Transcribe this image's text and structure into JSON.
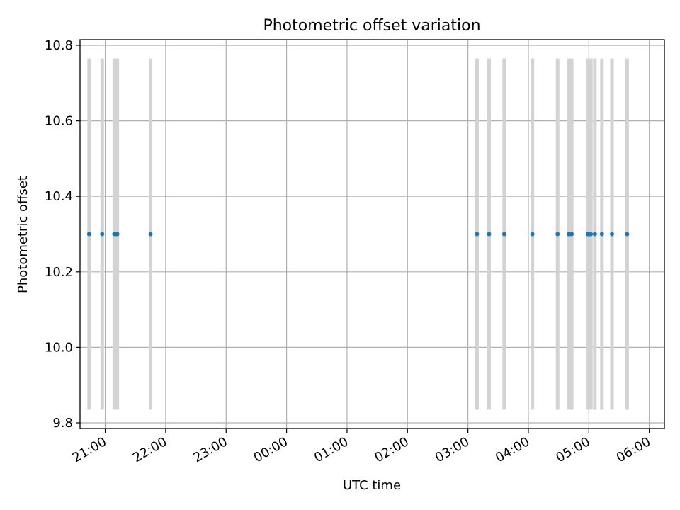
{
  "chart_data": {
    "type": "scatter",
    "title": "Photometric offset variation",
    "xlabel": "UTC time",
    "ylabel": "Photometric offset",
    "x_ticks": [
      "21:00",
      "22:00",
      "23:00",
      "00:00",
      "01:00",
      "02:00",
      "03:00",
      "04:00",
      "05:00",
      "06:00"
    ],
    "y_ticks": [
      "9.8",
      "10.0",
      "10.2",
      "10.4",
      "10.6",
      "10.8"
    ],
    "xlim": [
      "20:35",
      "06:15"
    ],
    "ylim": [
      9.785,
      10.815
    ],
    "grid": true,
    "points": {
      "color": "#1f77b4",
      "x": [
        "20:44",
        "20:57",
        "21:09",
        "21:11",
        "21:12",
        "21:45",
        "03:09",
        "03:21",
        "03:36",
        "04:04",
        "04:29",
        "04:40",
        "04:41",
        "04:43",
        "04:59",
        "05:00",
        "05:01",
        "05:02",
        "05:06",
        "05:13",
        "05:23",
        "05:38"
      ],
      "y": [
        10.3,
        10.3,
        10.3,
        10.3,
        10.3,
        10.3,
        10.3,
        10.3,
        10.3,
        10.3,
        10.3,
        10.3,
        10.3,
        10.3,
        10.3,
        10.3,
        10.3,
        10.3,
        10.3,
        10.3,
        10.3,
        10.3
      ]
    },
    "error_bars": {
      "color": "#d3d3d3",
      "lower": 9.835,
      "upper": 10.765
    }
  }
}
